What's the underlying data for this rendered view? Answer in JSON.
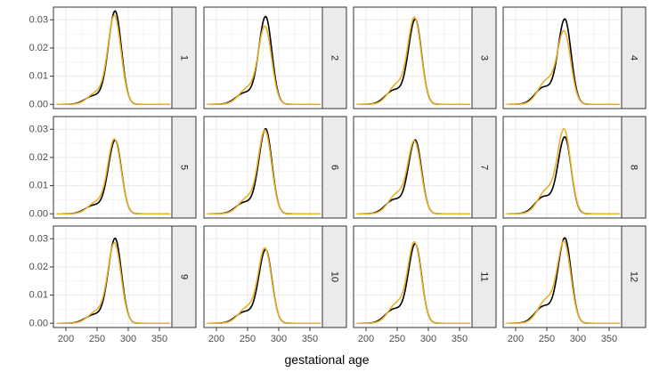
{
  "chart_data": {
    "type": "line",
    "facet_layout": "3 rows x 4 columns, strip labels on right",
    "xlabel": "gestational age",
    "ylabel": "",
    "xlim": [
      180,
      370
    ],
    "ylim": [
      -0.0015,
      0.0345
    ],
    "x_ticks": [
      200,
      250,
      300,
      350
    ],
    "y_ticks": [
      0.0,
      0.01,
      0.02,
      0.03
    ],
    "y_tick_labels": [
      "0.00",
      "0.01",
      "0.02",
      "0.03"
    ],
    "series_colors": {
      "black": "#000000",
      "gold": "#E6B12A"
    },
    "background": {
      "panel_bg": "#ffffff",
      "grid": "#ebebeb",
      "strip_bg": "#ebebeb",
      "border": "#333333"
    },
    "panels": [
      {
        "label": "1",
        "black_peak": 0.033,
        "gold_peak": 0.031
      },
      {
        "label": "2",
        "black_peak": 0.031,
        "gold_peak": 0.027
      },
      {
        "label": "3",
        "black_peak": 0.03,
        "gold_peak": 0.03
      },
      {
        "label": "4",
        "black_peak": 0.03,
        "gold_peak": 0.025
      },
      {
        "label": "5",
        "black_peak": 0.026,
        "gold_peak": 0.026
      },
      {
        "label": "6",
        "black_peak": 0.03,
        "gold_peak": 0.029
      },
      {
        "label": "7",
        "black_peak": 0.026,
        "gold_peak": 0.025
      },
      {
        "label": "8",
        "black_peak": 0.027,
        "gold_peak": 0.029
      },
      {
        "label": "9",
        "black_peak": 0.03,
        "gold_peak": 0.028
      },
      {
        "label": "10",
        "black_peak": 0.026,
        "gold_peak": 0.026
      },
      {
        "label": "11",
        "black_peak": 0.028,
        "gold_peak": 0.028
      },
      {
        "label": "12",
        "black_peak": 0.03,
        "gold_peak": 0.028
      }
    ]
  }
}
